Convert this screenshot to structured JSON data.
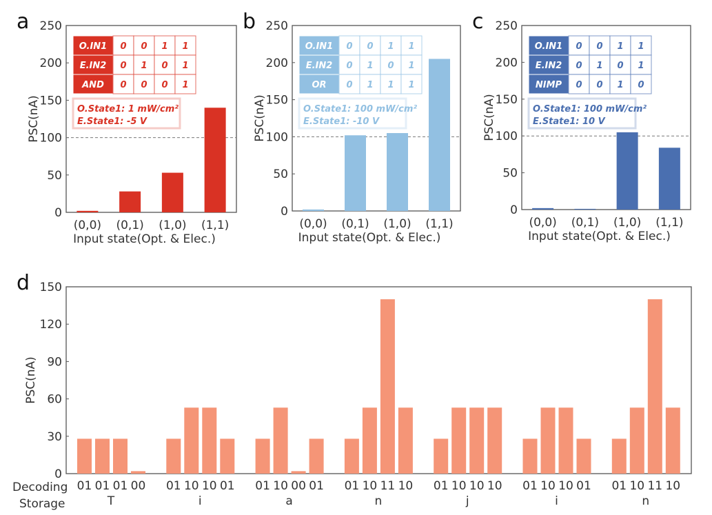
{
  "chart_data": [
    {
      "panel": "a",
      "type": "bar",
      "categories": [
        "(0,0)",
        "(0,1)",
        "(1,0)",
        "(1,1)"
      ],
      "values": [
        2,
        28,
        53,
        140
      ],
      "ylabel": "PSC(nA)",
      "xlabel": "Input state(Opt. & Elec.)",
      "ylim": [
        0,
        250
      ],
      "yticks": [
        0,
        50,
        100,
        150,
        200,
        250
      ],
      "threshold": 100,
      "color": "#d93224",
      "table": [
        [
          "O.IN1",
          "0",
          "0",
          "1",
          "1"
        ],
        [
          "E.IN2",
          "0",
          "1",
          "0",
          "1"
        ],
        [
          "AND",
          "0",
          "0",
          "0",
          "1"
        ]
      ],
      "note": [
        "O.State1: 1 mW/cm²",
        "E.State1: -5 V"
      ]
    },
    {
      "panel": "b",
      "type": "bar",
      "categories": [
        "(0,0)",
        "(0,1)",
        "(1,0)",
        "(1,1)"
      ],
      "values": [
        2,
        102,
        105,
        205
      ],
      "ylabel": "PSC(nA)",
      "xlabel": "Input state(Opt. & Elec.)",
      "ylim": [
        0,
        250
      ],
      "yticks": [
        0,
        50,
        100,
        150,
        200,
        250
      ],
      "threshold": 100,
      "color": "#92c0e2",
      "table": [
        [
          "O.IN1",
          "0",
          "0",
          "1",
          "1"
        ],
        [
          "E.IN2",
          "0",
          "1",
          "0",
          "1"
        ],
        [
          "OR",
          "0",
          "1",
          "1",
          "1"
        ]
      ],
      "note": [
        "O.State1: 100 mW/cm²",
        "E.State1: -10 V"
      ]
    },
    {
      "panel": "c",
      "type": "bar",
      "categories": [
        "(0,0)",
        "(0,1)",
        "(1,0)",
        "(1,1)"
      ],
      "values": [
        2,
        1,
        105,
        84
      ],
      "ylabel": "PSC(nA)",
      "xlabel": "Input state(Opt. & Elec.)",
      "ylim": [
        0,
        250
      ],
      "yticks": [
        0,
        50,
        100,
        150,
        200,
        250
      ],
      "threshold": 100,
      "color": "#4a6fb0",
      "table": [
        [
          "O.IN1",
          "0",
          "0",
          "1",
          "1"
        ],
        [
          "E.IN2",
          "0",
          "1",
          "0",
          "1"
        ],
        [
          "NIMP",
          "0",
          "0",
          "1",
          "0"
        ]
      ],
      "note": [
        "O.State1: 100 mW/cm²",
        "E.State1: 10 V"
      ]
    },
    {
      "panel": "d",
      "type": "bar",
      "ylabel": "PSC(nA)",
      "ylim": [
        0,
        150
      ],
      "yticks": [
        0,
        30,
        60,
        90,
        120,
        150
      ],
      "color": "#f59577",
      "row_labels": [
        "Decoding",
        "Storage"
      ],
      "groups": [
        {
          "letter": "T",
          "codes": [
            "01",
            "01",
            "01",
            "00"
          ],
          "values": [
            28,
            28,
            28,
            2
          ]
        },
        {
          "letter": "i",
          "codes": [
            "01",
            "10",
            "10",
            "01"
          ],
          "values": [
            28,
            53,
            53,
            28
          ]
        },
        {
          "letter": "a",
          "codes": [
            "01",
            "10",
            "00",
            "01"
          ],
          "values": [
            28,
            53,
            2,
            28
          ]
        },
        {
          "letter": "n",
          "codes": [
            "01",
            "10",
            "11",
            "10"
          ],
          "values": [
            28,
            53,
            140,
            53
          ]
        },
        {
          "letter": "j",
          "codes": [
            "01",
            "10",
            "10",
            "10"
          ],
          "values": [
            28,
            53,
            53,
            53
          ]
        },
        {
          "letter": "i",
          "codes": [
            "01",
            "10",
            "10",
            "01"
          ],
          "values": [
            28,
            53,
            53,
            28
          ]
        },
        {
          "letter": "n",
          "codes": [
            "01",
            "10",
            "11",
            "10"
          ],
          "values": [
            28,
            53,
            140,
            53
          ]
        }
      ]
    }
  ]
}
